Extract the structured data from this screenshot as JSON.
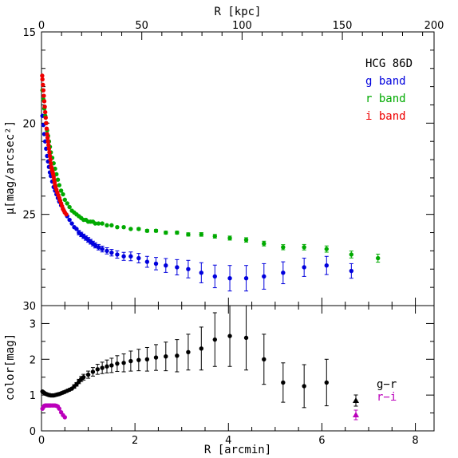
{
  "chart_data": [
    {
      "type": "scatter",
      "panel": "top",
      "xlim": [
        0,
        8.4
      ],
      "ylim": [
        30.0,
        15.0
      ],
      "y_inverted": true,
      "ylabel": "μ[mag/arcsec²]",
      "top_axis": {
        "label": "R [kpc]",
        "ticks": [
          0,
          50,
          100,
          150,
          200
        ],
        "kpc_per_arcmin": 23.3
      },
      "y_ticks": [
        15,
        20,
        25,
        30
      ],
      "legend_title": "HCG 86D",
      "legend_placement": "top-right",
      "series": [
        {
          "name": "g band",
          "color": "#0000dd",
          "points": [
            [
              0.02,
              19.6
            ],
            [
              0.04,
              20.1
            ],
            [
              0.06,
              20.6
            ],
            [
              0.08,
              21.0
            ],
            [
              0.1,
              21.4
            ],
            [
              0.12,
              21.8
            ],
            [
              0.14,
              22.1
            ],
            [
              0.16,
              22.4
            ],
            [
              0.18,
              22.7
            ],
            [
              0.2,
              22.9
            ],
            [
              0.23,
              23.2
            ],
            [
              0.26,
              23.5
            ],
            [
              0.29,
              23.7
            ],
            [
              0.32,
              23.9
            ],
            [
              0.35,
              24.1
            ],
            [
              0.38,
              24.3
            ],
            [
              0.42,
              24.5
            ],
            [
              0.46,
              24.7
            ],
            [
              0.5,
              24.9
            ],
            [
              0.55,
              25.1
            ],
            [
              0.6,
              25.3
            ],
            [
              0.65,
              25.5
            ],
            [
              0.7,
              25.7
            ],
            [
              0.75,
              25.8
            ],
            [
              0.8,
              26.0
            ],
            [
              0.85,
              26.1
            ],
            [
              0.9,
              26.2
            ],
            [
              0.95,
              26.3
            ],
            [
              1.0,
              26.4
            ],
            [
              1.05,
              26.5
            ],
            [
              1.1,
              26.6
            ],
            [
              1.15,
              26.7
            ],
            [
              1.22,
              26.8
            ],
            [
              1.3,
              26.9
            ],
            [
              1.4,
              27.0
            ],
            [
              1.5,
              27.1
            ],
            [
              1.62,
              27.2
            ],
            [
              1.76,
              27.3
            ],
            [
              1.91,
              27.3
            ],
            [
              2.08,
              27.4
            ],
            [
              2.26,
              27.6
            ],
            [
              2.45,
              27.7
            ],
            [
              2.66,
              27.8
            ],
            [
              2.9,
              27.9
            ],
            [
              3.14,
              28.0
            ],
            [
              3.42,
              28.2
            ],
            [
              3.71,
              28.4
            ],
            [
              4.03,
              28.5
            ],
            [
              4.38,
              28.5
            ],
            [
              4.76,
              28.4
            ],
            [
              5.17,
              28.2
            ],
            [
              5.62,
              27.9
            ],
            [
              6.1,
              27.8
            ],
            [
              6.63,
              28.1
            ]
          ],
          "errors": [
            null,
            null,
            null,
            null,
            null,
            null,
            null,
            null,
            null,
            null,
            null,
            null,
            null,
            null,
            null,
            null,
            null,
            null,
            null,
            null,
            null,
            null,
            null,
            null,
            0.12,
            0.12,
            0.12,
            0.12,
            0.13,
            0.13,
            0.13,
            0.14,
            0.15,
            0.16,
            0.17,
            0.18,
            0.2,
            0.22,
            0.24,
            0.26,
            0.3,
            0.34,
            0.38,
            0.42,
            0.48,
            0.55,
            0.62,
            0.7,
            0.7,
            0.7,
            0.6,
            0.5,
            0.5,
            0.4
          ]
        },
        {
          "name": "r band",
          "color": "#00aa00",
          "points": [
            [
              0.02,
              18.2
            ],
            [
              0.04,
              18.7
            ],
            [
              0.06,
              19.2
            ],
            [
              0.08,
              19.6
            ],
            [
              0.1,
              20.0
            ],
            [
              0.12,
              20.4
            ],
            [
              0.14,
              20.7
            ],
            [
              0.16,
              21.0
            ],
            [
              0.18,
              21.3
            ],
            [
              0.2,
              21.6
            ],
            [
              0.23,
              21.9
            ],
            [
              0.26,
              22.2
            ],
            [
              0.29,
              22.5
            ],
            [
              0.32,
              22.8
            ],
            [
              0.35,
              23.1
            ],
            [
              0.38,
              23.4
            ],
            [
              0.42,
              23.7
            ],
            [
              0.46,
              23.9
            ],
            [
              0.5,
              24.2
            ],
            [
              0.55,
              24.4
            ],
            [
              0.6,
              24.6
            ],
            [
              0.65,
              24.8
            ],
            [
              0.7,
              24.9
            ],
            [
              0.75,
              25.0
            ],
            [
              0.8,
              25.1
            ],
            [
              0.85,
              25.2
            ],
            [
              0.9,
              25.3
            ],
            [
              0.95,
              25.3
            ],
            [
              1.0,
              25.4
            ],
            [
              1.05,
              25.4
            ],
            [
              1.1,
              25.4
            ],
            [
              1.15,
              25.5
            ],
            [
              1.22,
              25.5
            ],
            [
              1.3,
              25.5
            ],
            [
              1.4,
              25.6
            ],
            [
              1.5,
              25.6
            ],
            [
              1.62,
              25.7
            ],
            [
              1.76,
              25.7
            ],
            [
              1.91,
              25.8
            ],
            [
              2.08,
              25.8
            ],
            [
              2.26,
              25.9
            ],
            [
              2.45,
              25.9
            ],
            [
              2.66,
              26.0
            ],
            [
              2.9,
              26.0
            ],
            [
              3.14,
              26.1
            ],
            [
              3.42,
              26.1
            ],
            [
              3.71,
              26.2
            ],
            [
              4.03,
              26.3
            ],
            [
              4.38,
              26.4
            ],
            [
              4.76,
              26.6
            ],
            [
              5.17,
              26.8
            ],
            [
              5.62,
              26.8
            ],
            [
              6.1,
              26.9
            ],
            [
              6.63,
              27.2
            ],
            [
              7.2,
              27.4
            ]
          ],
          "errors": [
            null,
            null,
            null,
            null,
            null,
            null,
            null,
            null,
            null,
            null,
            null,
            null,
            null,
            null,
            null,
            null,
            null,
            null,
            null,
            null,
            null,
            null,
            null,
            null,
            null,
            null,
            null,
            null,
            null,
            null,
            null,
            null,
            null,
            null,
            null,
            null,
            null,
            null,
            null,
            0.06,
            0.07,
            0.07,
            0.08,
            0.08,
            0.09,
            0.1,
            0.1,
            0.11,
            0.12,
            0.13,
            0.14,
            0.15,
            0.17,
            0.19,
            0.22
          ]
        },
        {
          "name": "i band",
          "color": "#ee0000",
          "points": [
            [
              0.015,
              17.4
            ],
            [
              0.02,
              17.6
            ],
            [
              0.03,
              17.9
            ],
            [
              0.04,
              18.2
            ],
            [
              0.05,
              18.5
            ],
            [
              0.06,
              18.8
            ],
            [
              0.07,
              19.1
            ],
            [
              0.08,
              19.4
            ],
            [
              0.09,
              19.7
            ],
            [
              0.1,
              20.0
            ],
            [
              0.11,
              20.3
            ],
            [
              0.12,
              20.6
            ],
            [
              0.13,
              20.8
            ],
            [
              0.14,
              21.0
            ],
            [
              0.15,
              21.2
            ],
            [
              0.16,
              21.4
            ],
            [
              0.17,
              21.6
            ],
            [
              0.18,
              21.8
            ],
            [
              0.19,
              22.0
            ],
            [
              0.2,
              22.2
            ],
            [
              0.21,
              22.4
            ],
            [
              0.22,
              22.5
            ],
            [
              0.23,
              22.6
            ],
            [
              0.24,
              22.7
            ],
            [
              0.25,
              22.8
            ],
            [
              0.26,
              22.95
            ],
            [
              0.27,
              23.1
            ],
            [
              0.28,
              23.25
            ],
            [
              0.29,
              23.4
            ],
            [
              0.3,
              23.5
            ],
            [
              0.32,
              23.65
            ],
            [
              0.34,
              23.8
            ],
            [
              0.36,
              23.95
            ],
            [
              0.38,
              24.1
            ],
            [
              0.4,
              24.25
            ],
            [
              0.42,
              24.4
            ],
            [
              0.44,
              24.55
            ],
            [
              0.46,
              24.7
            ],
            [
              0.48,
              24.8
            ],
            [
              0.5,
              24.9
            ],
            [
              0.53,
              25.0
            ]
          ],
          "errors": []
        }
      ]
    },
    {
      "type": "scatter",
      "panel": "bottom",
      "xlim": [
        0,
        8.4
      ],
      "ylim": [
        0,
        3.5
      ],
      "xlabel": "R [arcmin]",
      "ylabel": "color[mag]",
      "x_ticks": [
        0,
        2,
        4,
        6,
        8
      ],
      "y_ticks": [
        0,
        1,
        2,
        3
      ],
      "legend_placement": "bottom-right",
      "series": [
        {
          "name": "g−r",
          "color": "#000000",
          "marker": "triangle",
          "points": [
            [
              0.02,
              1.1
            ],
            [
              0.04,
              1.08
            ],
            [
              0.06,
              1.06
            ],
            [
              0.08,
              1.04
            ],
            [
              0.1,
              1.03
            ],
            [
              0.12,
              1.02
            ],
            [
              0.14,
              1.01
            ],
            [
              0.16,
              1.0
            ],
            [
              0.18,
              1.0
            ],
            [
              0.2,
              0.99
            ],
            [
              0.23,
              0.99
            ],
            [
              0.26,
              0.99
            ],
            [
              0.29,
              1.0
            ],
            [
              0.32,
              1.01
            ],
            [
              0.35,
              1.02
            ],
            [
              0.38,
              1.03
            ],
            [
              0.42,
              1.05
            ],
            [
              0.46,
              1.07
            ],
            [
              0.5,
              1.09
            ],
            [
              0.55,
              1.12
            ],
            [
              0.6,
              1.15
            ],
            [
              0.65,
              1.18
            ],
            [
              0.7,
              1.24
            ],
            [
              0.75,
              1.3
            ],
            [
              0.8,
              1.38
            ],
            [
              0.85,
              1.45
            ],
            [
              0.9,
              1.5
            ],
            [
              1.0,
              1.57
            ],
            [
              1.1,
              1.65
            ],
            [
              1.2,
              1.72
            ],
            [
              1.3,
              1.76
            ],
            [
              1.4,
              1.8
            ],
            [
              1.5,
              1.83
            ],
            [
              1.62,
              1.88
            ],
            [
              1.76,
              1.9
            ],
            [
              1.91,
              1.95
            ],
            [
              2.08,
              1.98
            ],
            [
              2.26,
              2.0
            ],
            [
              2.45,
              2.05
            ],
            [
              2.66,
              2.08
            ],
            [
              2.9,
              2.1
            ],
            [
              3.14,
              2.2
            ],
            [
              3.42,
              2.3
            ],
            [
              3.71,
              2.55
            ],
            [
              4.03,
              2.65
            ],
            [
              4.38,
              2.6
            ],
            [
              4.76,
              2.0
            ],
            [
              5.17,
              1.35
            ],
            [
              5.62,
              1.25
            ],
            [
              6.1,
              1.35
            ]
          ],
          "errors": [
            null,
            null,
            null,
            null,
            null,
            null,
            null,
            null,
            null,
            null,
            null,
            null,
            null,
            null,
            null,
            null,
            null,
            null,
            null,
            null,
            null,
            null,
            0.05,
            0.05,
            0.06,
            0.07,
            0.08,
            0.1,
            0.12,
            0.14,
            0.16,
            0.18,
            0.2,
            0.22,
            0.25,
            0.28,
            0.3,
            0.33,
            0.36,
            0.4,
            0.45,
            0.5,
            0.6,
            0.75,
            0.85,
            0.9,
            0.7,
            0.55,
            0.6,
            0.65
          ]
        },
        {
          "name": "r−i",
          "color": "#bb00bb",
          "marker": "triangle",
          "points": [
            [
              0.02,
              0.62
            ],
            [
              0.04,
              0.66
            ],
            [
              0.06,
              0.7
            ],
            [
              0.08,
              0.71
            ],
            [
              0.1,
              0.71
            ],
            [
              0.12,
              0.71
            ],
            [
              0.14,
              0.71
            ],
            [
              0.16,
              0.71
            ],
            [
              0.18,
              0.71
            ],
            [
              0.2,
              0.71
            ],
            [
              0.23,
              0.71
            ],
            [
              0.26,
              0.71
            ],
            [
              0.29,
              0.71
            ],
            [
              0.32,
              0.7
            ],
            [
              0.35,
              0.68
            ],
            [
              0.38,
              0.62
            ],
            [
              0.42,
              0.52
            ],
            [
              0.46,
              0.44
            ],
            [
              0.5,
              0.38
            ]
          ],
          "errors": []
        }
      ]
    }
  ]
}
